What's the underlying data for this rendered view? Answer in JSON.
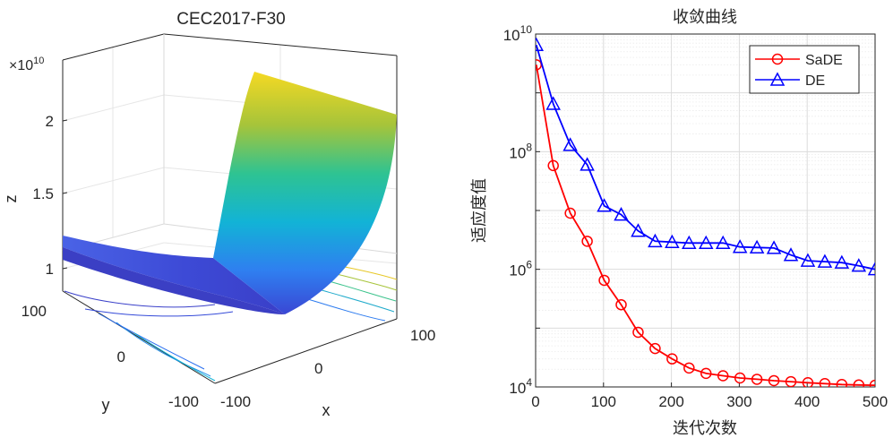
{
  "chart_data": [
    {
      "type": "surface3d",
      "title": "CEC2017-F30",
      "xlabel": "x",
      "ylabel": "y",
      "zlabel": "z",
      "z_multiplier_label": "×10",
      "z_multiplier_exponent": "10",
      "x_ticks": [
        "-100",
        "0",
        "100"
      ],
      "y_ticks": [
        "100",
        "0",
        "-100"
      ],
      "z_ticks": [
        "1",
        "1.5",
        "2"
      ],
      "xlim": [
        -100,
        100
      ],
      "ylim": [
        -100,
        100
      ],
      "zlim": [
        8500000000.0,
        22500000000.0
      ],
      "colormap": "parula",
      "contours_on_floor": true
    },
    {
      "type": "line",
      "title": "收敛曲线",
      "xlabel": "迭代次数",
      "ylabel": "适应度值",
      "yscale": "log",
      "xlim": [
        0,
        500
      ],
      "ylim": [
        10000,
        10000000000
      ],
      "x_ticks": [
        "0",
        "100",
        "200",
        "300",
        "400",
        "500"
      ],
      "y_ticks": [
        {
          "base": "10",
          "exp": "4"
        },
        {
          "base": "10",
          "exp": "6"
        },
        {
          "base": "10",
          "exp": "8"
        },
        {
          "base": "10",
          "exp": "10"
        }
      ],
      "grid": true,
      "legend_position": "top-right",
      "x": [
        1,
        26,
        51,
        76,
        101,
        126,
        151,
        176,
        201,
        226,
        251,
        276,
        301,
        326,
        351,
        376,
        401,
        426,
        451,
        476,
        500
      ],
      "series": [
        {
          "name": "SaDE",
          "color": "#ff0000",
          "marker": "circle",
          "values": [
            3000000000,
            58000000,
            9000000,
            3000000,
            650000,
            250000,
            85000,
            45000,
            30000,
            21000,
            17000,
            15500,
            14200,
            13500,
            12800,
            12300,
            11800,
            11400,
            11000,
            10800,
            10700
          ]
        },
        {
          "name": "DE",
          "color": "#0000ff",
          "marker": "triangle",
          "values": [
            6500000000,
            650000000,
            130000000,
            60000000,
            12000000,
            8500000,
            4500000,
            3000000,
            2900000,
            2800000,
            2800000,
            2800000,
            2400000,
            2350000,
            2300000,
            1750000,
            1400000,
            1350000,
            1300000,
            1150000,
            1000000
          ]
        }
      ]
    }
  ]
}
